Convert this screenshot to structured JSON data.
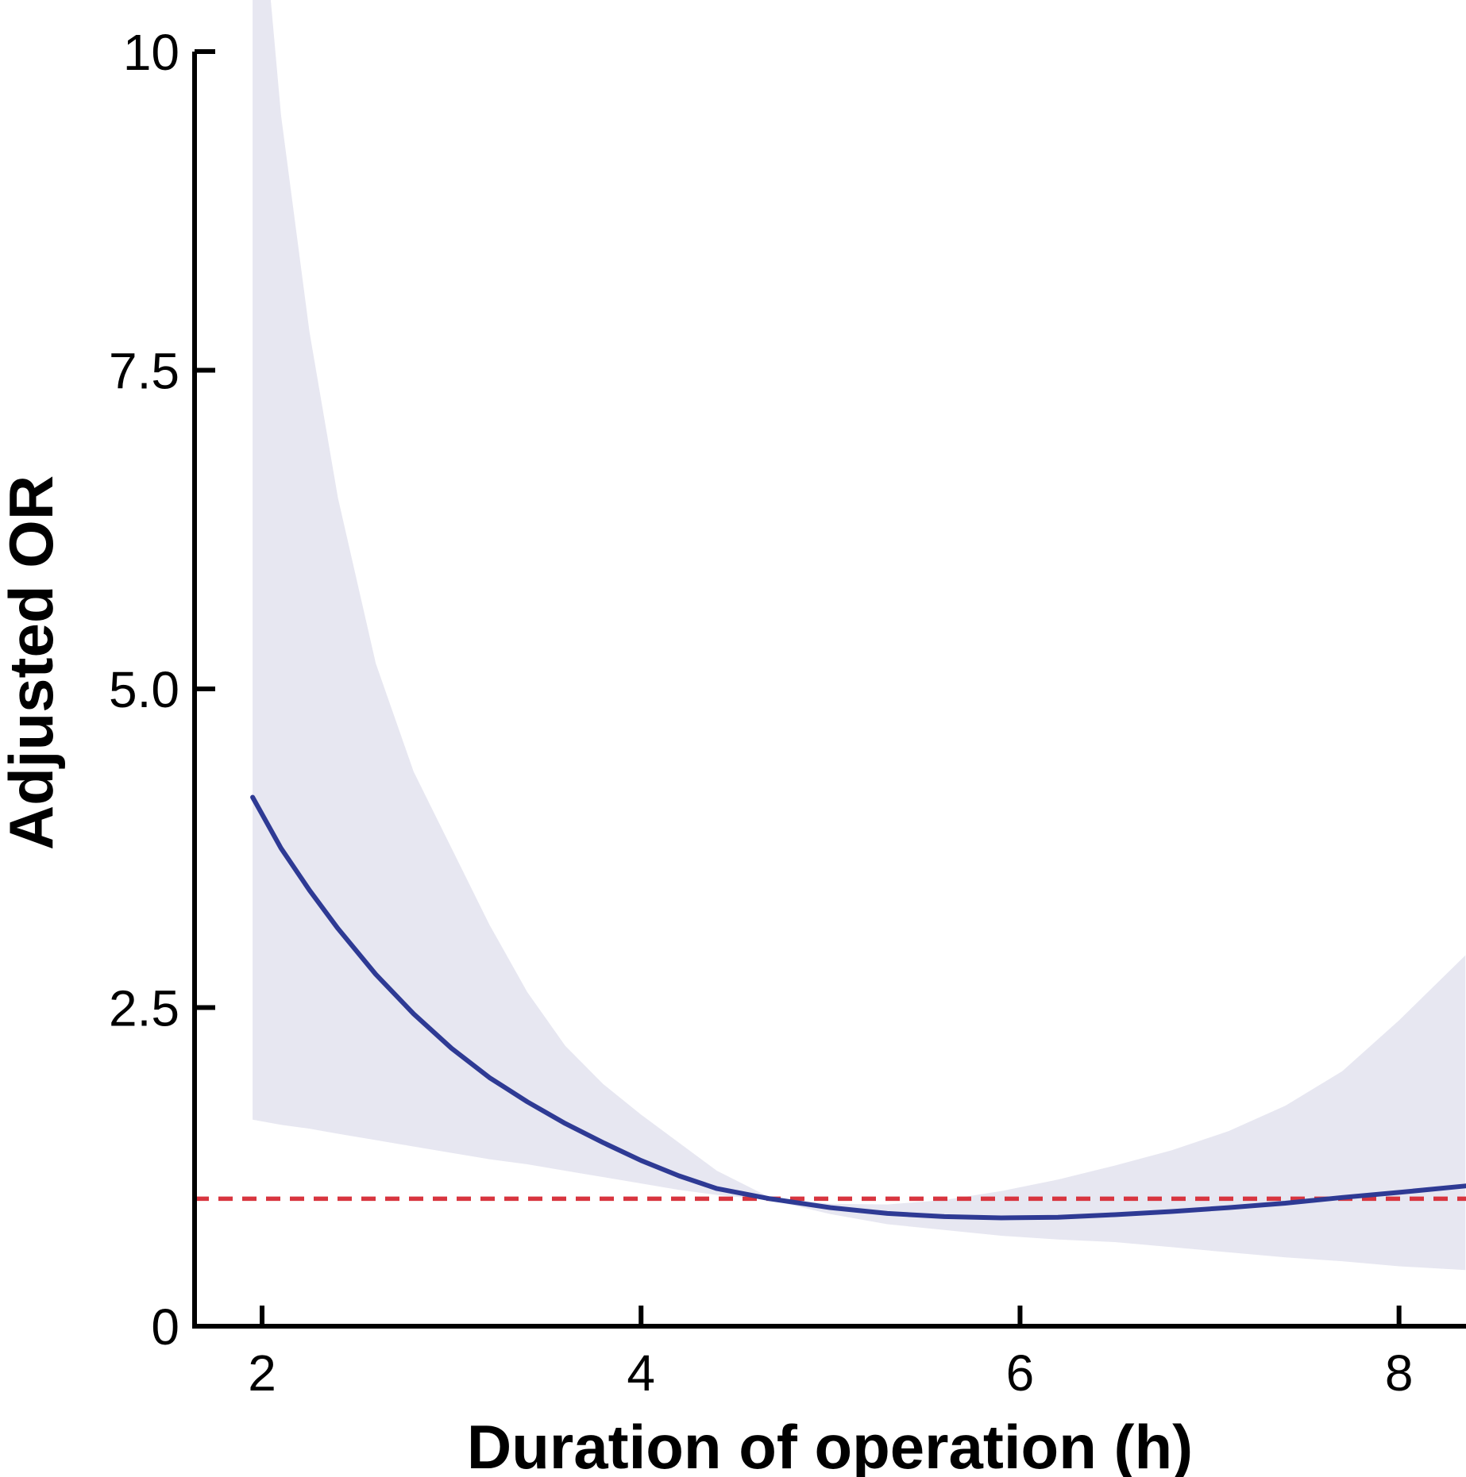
{
  "figure": {
    "description": "Restricted-cubic-spline plot of adjusted odds ratio versus duration of operation with 95% confidence band and OR=1 reference line"
  },
  "axes": {
    "x": {
      "title": "Duration of operation (h)",
      "tick_values": [
        2,
        4,
        6,
        8
      ],
      "tick_labels": [
        "2",
        "4",
        "6",
        "8"
      ],
      "range": [
        1.6437,
        8.3535
      ]
    },
    "y": {
      "title": "Adjusted OR",
      "tick_values": [
        0,
        2.5,
        5.0,
        7.5,
        10
      ],
      "tick_labels": [
        "0",
        "2.5",
        "5.0",
        "7.5",
        "10"
      ],
      "range": [
        0,
        10
      ]
    }
  },
  "reference_line": {
    "value": 1.0,
    "style": "dashed",
    "color": "#d8353f"
  },
  "colors": {
    "curve": "#2e3a94",
    "band": "#e7e7f1",
    "axis": "#000000",
    "text": "#000000",
    "background": "#ffffff"
  },
  "chart_data": {
    "type": "line",
    "title": "",
    "xlabel": "Duration of operation (h)",
    "ylabel": "Adjusted OR",
    "xlim": [
      1.64,
      8.35
    ],
    "ylim": [
      0,
      10
    ],
    "x_ticks": [
      2,
      4,
      6,
      8
    ],
    "y_ticks": [
      0,
      2.5,
      5.0,
      7.5,
      10
    ],
    "grid": false,
    "legend": "none",
    "reference_or": 1.0,
    "x": [
      1.95,
      2.1,
      2.25,
      2.4,
      2.6,
      2.8,
      3.0,
      3.2,
      3.4,
      3.6,
      3.8,
      4.0,
      4.2,
      4.4,
      4.68,
      5.0,
      5.3,
      5.6,
      5.9,
      6.2,
      6.5,
      6.8,
      7.1,
      7.4,
      7.7,
      8.0,
      8.35
    ],
    "series": [
      {
        "name": "adjusted_or_fit",
        "values": [
          4.15,
          3.75,
          3.42,
          3.12,
          2.76,
          2.45,
          2.18,
          1.95,
          1.76,
          1.59,
          1.44,
          1.3,
          1.18,
          1.08,
          1.0,
          0.93,
          0.885,
          0.86,
          0.85,
          0.855,
          0.875,
          0.9,
          0.93,
          0.965,
          1.01,
          1.05,
          1.1
        ]
      },
      {
        "name": "ci_lower",
        "values": [
          1.62,
          1.58,
          1.55,
          1.51,
          1.46,
          1.41,
          1.36,
          1.31,
          1.27,
          1.22,
          1.17,
          1.12,
          1.07,
          1.03,
          0.99,
          0.88,
          0.8,
          0.755,
          0.71,
          0.68,
          0.66,
          0.62,
          0.58,
          0.54,
          0.51,
          0.47,
          0.44
        ]
      },
      {
        "name": "ci_upper",
        "values": [
          12.0,
          9.5,
          7.8,
          6.5,
          5.2,
          4.35,
          3.75,
          3.15,
          2.62,
          2.2,
          1.9,
          1.66,
          1.44,
          1.22,
          1.01,
          0.96,
          0.955,
          0.99,
          1.06,
          1.15,
          1.26,
          1.38,
          1.53,
          1.73,
          2.0,
          2.4,
          2.91
        ]
      }
    ]
  }
}
